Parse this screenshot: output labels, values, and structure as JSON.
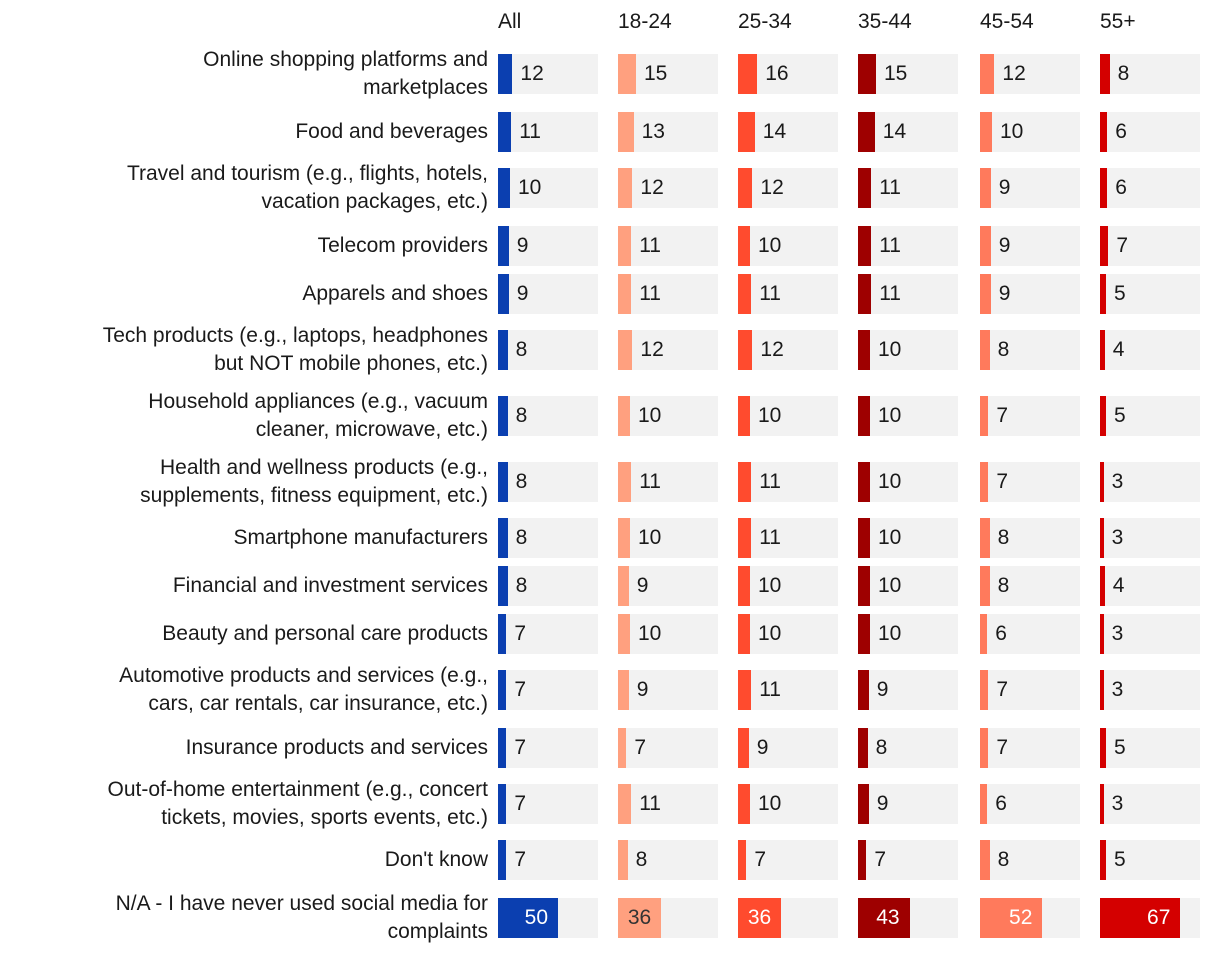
{
  "chart_data": {
    "type": "table",
    "title": "",
    "columns": [
      "All",
      "18-24",
      "25-34",
      "35-44",
      "45-54",
      "55+"
    ],
    "column_colors": [
      "#0b3fb0",
      "#ffa07f",
      "#ff4b2e",
      "#9e0000",
      "#ff7a5c",
      "#d40000"
    ],
    "max_value": 100,
    "rows": [
      {
        "label": [
          "Online shopping platforms and",
          "marketplaces"
        ],
        "values": [
          12,
          15,
          16,
          15,
          12,
          8
        ]
      },
      {
        "label": [
          "Food and beverages"
        ],
        "values": [
          11,
          13,
          14,
          14,
          10,
          6
        ]
      },
      {
        "label": [
          "Travel and tourism (e.g., flights, hotels,",
          "vacation packages, etc.)"
        ],
        "values": [
          10,
          12,
          12,
          11,
          9,
          6
        ]
      },
      {
        "label": [
          "Telecom providers"
        ],
        "values": [
          9,
          11,
          10,
          11,
          9,
          7
        ]
      },
      {
        "label": [
          "Apparels and shoes"
        ],
        "values": [
          9,
          11,
          11,
          11,
          9,
          5
        ]
      },
      {
        "label": [
          "Tech products (e.g., laptops, headphones",
          "but NOT mobile phones, etc.)"
        ],
        "values": [
          8,
          12,
          12,
          10,
          8,
          4
        ]
      },
      {
        "label": [
          "Household appliances (e.g., vacuum",
          "cleaner, microwave, etc.)"
        ],
        "values": [
          8,
          10,
          10,
          10,
          7,
          5
        ]
      },
      {
        "label": [
          "Health and wellness products (e.g.,",
          "supplements, fitness equipment, etc.)"
        ],
        "values": [
          8,
          11,
          11,
          10,
          7,
          3
        ]
      },
      {
        "label": [
          "Smartphone manufacturers"
        ],
        "values": [
          8,
          10,
          11,
          10,
          8,
          3
        ]
      },
      {
        "label": [
          "Financial and investment services"
        ],
        "values": [
          8,
          9,
          10,
          10,
          8,
          4
        ]
      },
      {
        "label": [
          "Beauty and personal care products"
        ],
        "values": [
          7,
          10,
          10,
          10,
          6,
          3
        ]
      },
      {
        "label": [
          "Automotive products and services (e.g.,",
          "cars, car rentals, car insurance, etc.)"
        ],
        "values": [
          7,
          9,
          11,
          9,
          7,
          3
        ]
      },
      {
        "label": [
          "Insurance products and services"
        ],
        "values": [
          7,
          7,
          9,
          8,
          7,
          5
        ]
      },
      {
        "label": [
          "Out-of-home entertainment (e.g., concert",
          "tickets, movies, sports events, etc.)"
        ],
        "values": [
          7,
          11,
          10,
          9,
          6,
          3
        ]
      },
      {
        "label": [
          "Don't know"
        ],
        "values": [
          7,
          8,
          7,
          7,
          8,
          5
        ]
      },
      {
        "label": [
          "N/A - I have never used social media for",
          "complaints"
        ],
        "values": [
          50,
          36,
          36,
          43,
          52,
          67
        ]
      }
    ]
  }
}
